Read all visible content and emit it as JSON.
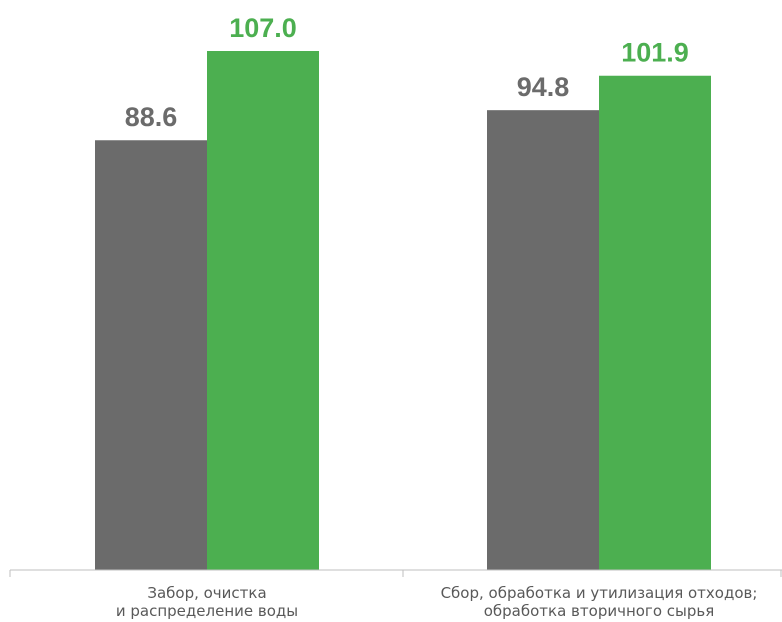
{
  "chart_data": {
    "type": "bar",
    "categories": [
      [
        "Забор, очистка",
        "и распределение воды"
      ],
      [
        "Сбор, обработка и утилизация отходов;",
        "обработка вторичного сырья"
      ]
    ],
    "series": [
      {
        "values": [
          88.6,
          94.8
        ],
        "color": "#6b6b6b",
        "label_color": "#6b6b6b"
      },
      {
        "values": [
          107.0,
          101.9
        ],
        "color": "#4caf50",
        "label_color": "#4caf50"
      }
    ],
    "value_labels": [
      [
        "88.6",
        "94.8"
      ],
      [
        "107.0",
        "101.9"
      ]
    ],
    "title": "",
    "xlabel": "",
    "ylabel": "",
    "ylim": [
      0,
      107.0
    ],
    "grid": false,
    "legend": "none"
  }
}
